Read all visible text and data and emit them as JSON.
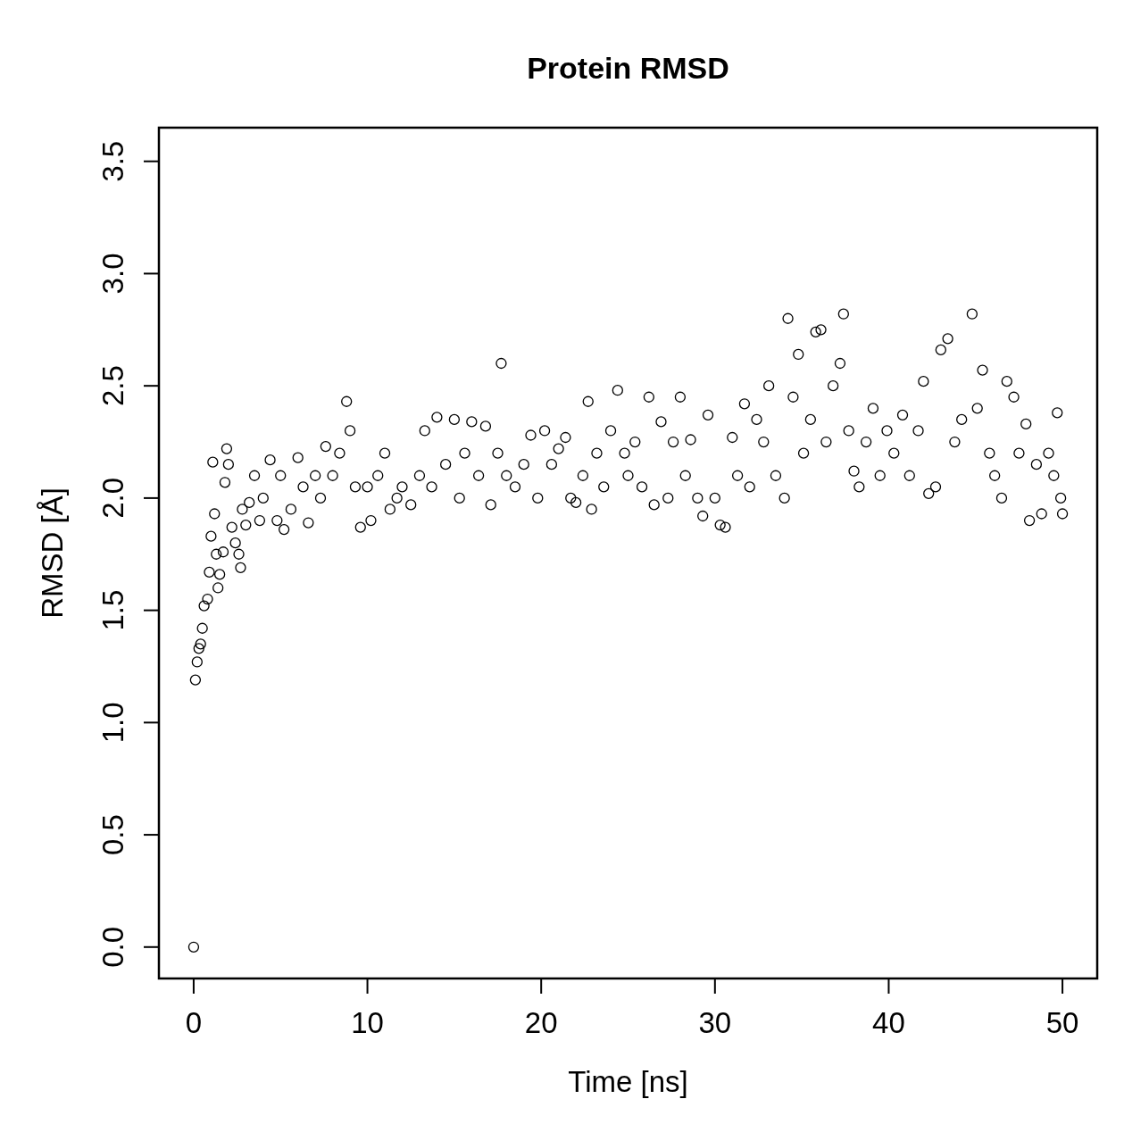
{
  "chart_data": {
    "type": "scatter",
    "title": "Protein RMSD",
    "xlabel": "Time [ns]",
    "ylabel": "RMSD [Å]",
    "marker": "circle",
    "xlim": [
      -2,
      52
    ],
    "ylim": [
      -0.14,
      3.65
    ],
    "xticks": [
      0,
      10,
      20,
      30,
      40,
      50
    ],
    "yticks": [
      {
        "value": 0,
        "label": "0.0"
      },
      0.5,
      {
        "value": 1,
        "label": "1.0"
      },
      1.5,
      {
        "value": 2,
        "label": "2.0"
      },
      2.5,
      {
        "value": 3,
        "label": "3.0"
      },
      3.5
    ],
    "series": [
      {
        "color": "#000000",
        "x": [
          0,
          0.1,
          0.2,
          0.3,
          0.4,
          0.5,
          0.6,
          0.8,
          0.9,
          1.0,
          1.1,
          1.2,
          1.3,
          1.4,
          1.5,
          1.7,
          1.8,
          1.9,
          2.0,
          2.2,
          2.4,
          2.6,
          2.7,
          2.8,
          3.0,
          3.2,
          3.5,
          3.8,
          4.0,
          4.4,
          4.8,
          5.0,
          5.2,
          5.6,
          6.0,
          6.3,
          6.6,
          7.0,
          7.3,
          7.6,
          8.0,
          8.4,
          8.8,
          9.0,
          9.3,
          9.6,
          10.0,
          10.2,
          10.6,
          11.0,
          11.3,
          11.7,
          12.0,
          12.5,
          13.0,
          13.3,
          13.7,
          14.0,
          14.5,
          15.0,
          15.3,
          15.6,
          16.0,
          16.4,
          16.8,
          17.1,
          17.5,
          17.7,
          18.0,
          18.5,
          19.0,
          19.4,
          19.8,
          20.2,
          20.6,
          21.0,
          21.4,
          21.7,
          22.0,
          22.4,
          22.7,
          22.9,
          23.2,
          23.6,
          24.0,
          24.4,
          24.8,
          25.0,
          25.4,
          25.8,
          26.2,
          26.5,
          26.9,
          27.3,
          27.6,
          28.0,
          28.3,
          28.6,
          29.0,
          29.3,
          29.6,
          30.0,
          30.3,
          30.6,
          31.0,
          31.3,
          31.7,
          32.0,
          32.4,
          32.8,
          33.1,
          33.5,
          34.0,
          34.2,
          34.5,
          34.8,
          35.1,
          35.5,
          35.8,
          36.1,
          36.4,
          36.8,
          37.2,
          37.4,
          37.7,
          38.0,
          38.3,
          38.7,
          39.1,
          39.5,
          39.9,
          40.3,
          40.8,
          41.2,
          41.7,
          42.0,
          42.3,
          42.7,
          43.0,
          43.4,
          43.8,
          44.2,
          44.8,
          45.1,
          45.4,
          45.8,
          46.1,
          46.5,
          46.8,
          47.2,
          47.5,
          47.9,
          48.1,
          48.5,
          48.8,
          49.2,
          49.5,
          49.7,
          49.9,
          50.0
        ],
        "values": [
          0,
          1.19,
          1.27,
          1.33,
          1.35,
          1.42,
          1.52,
          1.55,
          1.67,
          1.83,
          2.16,
          1.93,
          1.75,
          1.6,
          1.66,
          1.76,
          2.07,
          2.22,
          2.15,
          1.87,
          1.8,
          1.75,
          1.69,
          1.95,
          1.88,
          1.98,
          2.1,
          1.9,
          2.0,
          2.17,
          1.9,
          2.1,
          1.86,
          1.95,
          2.18,
          2.05,
          1.89,
          2.1,
          2.0,
          2.23,
          2.1,
          2.2,
          2.43,
          2.3,
          2.05,
          1.87,
          2.05,
          1.9,
          2.1,
          2.2,
          1.95,
          2.0,
          2.05,
          1.97,
          2.1,
          2.3,
          2.05,
          2.36,
          2.15,
          2.35,
          2.0,
          2.2,
          2.34,
          2.1,
          2.32,
          1.97,
          2.2,
          2.6,
          2.1,
          2.05,
          2.15,
          2.28,
          2.0,
          2.3,
          2.15,
          2.22,
          2.27,
          2.0,
          1.98,
          2.1,
          2.43,
          1.95,
          2.2,
          2.05,
          2.3,
          2.48,
          2.2,
          2.1,
          2.25,
          2.05,
          2.45,
          1.97,
          2.34,
          2.0,
          2.25,
          2.45,
          2.1,
          2.26,
          2.0,
          1.92,
          2.37,
          2.0,
          1.88,
          1.87,
          2.27,
          2.1,
          2.42,
          2.05,
          2.35,
          2.25,
          2.5,
          2.1,
          2.0,
          2.8,
          2.45,
          2.64,
          2.2,
          2.35,
          2.74,
          2.75,
          2.25,
          2.5,
          2.6,
          2.82,
          2.3,
          2.12,
          2.05,
          2.25,
          2.4,
          2.1,
          2.3,
          2.2,
          2.37,
          2.1,
          2.3,
          2.52,
          2.02,
          2.05,
          2.66,
          2.71,
          2.25,
          2.35,
          2.82,
          2.4,
          2.57,
          2.2,
          2.1,
          2.0,
          2.52,
          2.45,
          2.2,
          2.33,
          1.9,
          2.15,
          1.93,
          2.2,
          2.1,
          2.38,
          2.0,
          1.93
        ]
      }
    ]
  }
}
